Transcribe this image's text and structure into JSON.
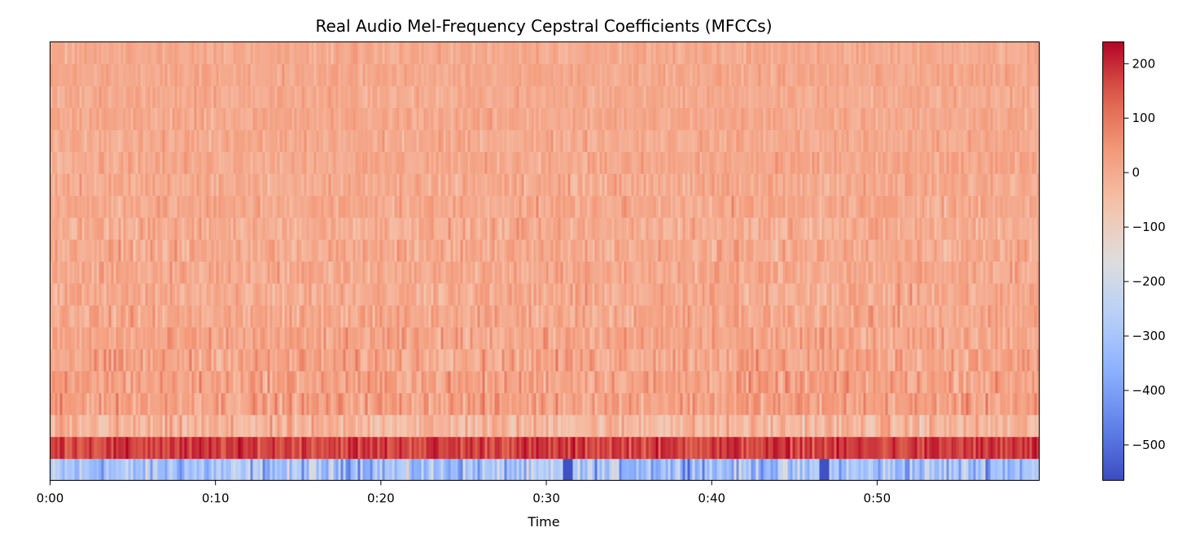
{
  "chart_data": {
    "type": "heatmap",
    "title": "Real Audio Mel-Frequency Cepstral Coefficients (MFCCs)",
    "xlabel": "Time",
    "ylabel": "",
    "xlim_seconds": [
      0,
      59.8
    ],
    "x_ticks": [
      "0:00",
      "0:10",
      "0:20",
      "0:30",
      "0:40",
      "0:50"
    ],
    "x_tick_values_seconds": [
      0,
      10,
      20,
      30,
      40,
      50
    ],
    "n_coefficients": 20,
    "n_frames_approx": 1290,
    "colormap": "coolwarm",
    "colorbar": {
      "vmin": -565,
      "vmax": 240,
      "ticks": [
        "200",
        "100",
        "0",
        "−100",
        "−200",
        "−300",
        "−400",
        "−500"
      ],
      "tick_values": [
        200,
        100,
        0,
        -100,
        -200,
        -300,
        -400,
        -500
      ],
      "placement": "right"
    },
    "coefficient_rows": [
      {
        "index": 0,
        "typical": -310,
        "spread": 75,
        "low_value_at_seconds": [
          31.3,
          46.8
        ]
      },
      {
        "index": 1,
        "typical": 175,
        "spread": 30
      },
      {
        "index": 2,
        "typical": -30,
        "spread": 40
      },
      {
        "index": 3,
        "typical": 25,
        "spread": 35
      },
      {
        "index": 4,
        "typical": 20,
        "spread": 35
      },
      {
        "index": 5,
        "typical": 15,
        "spread": 35
      },
      {
        "index": 6,
        "typical": 10,
        "spread": 30
      },
      {
        "index": 7,
        "typical": 5,
        "spread": 30
      },
      {
        "index": 8,
        "typical": 0,
        "spread": 30
      },
      {
        "index": 9,
        "typical": 5,
        "spread": 28
      },
      {
        "index": 10,
        "typical": 0,
        "spread": 28
      },
      {
        "index": 11,
        "typical": -5,
        "spread": 28
      },
      {
        "index": 12,
        "typical": 5,
        "spread": 25
      },
      {
        "index": 13,
        "typical": 0,
        "spread": 25
      },
      {
        "index": 14,
        "typical": 5,
        "spread": 22
      },
      {
        "index": 15,
        "typical": 0,
        "spread": 22
      },
      {
        "index": 16,
        "typical": 5,
        "spread": 20
      },
      {
        "index": 17,
        "typical": 0,
        "spread": 20
      },
      {
        "index": 18,
        "typical": 5,
        "spread": 18
      },
      {
        "index": 19,
        "typical": 0,
        "spread": 18
      }
    ]
  }
}
